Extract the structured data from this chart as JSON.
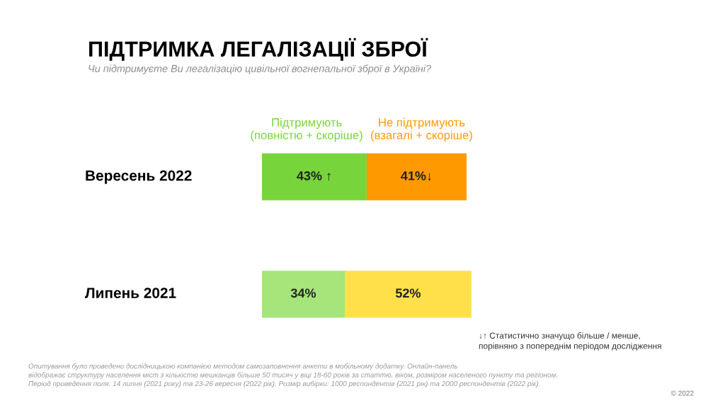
{
  "chart_data": {
    "type": "bar",
    "orientation": "horizontal",
    "stacked": true,
    "title": "ПІДТРИМКА ЛЕГАЛІЗАЦІЇ ЗБРОЇ",
    "subtitle": "Чи підтримуєте Ви легалізацію цивільної вогнепальної зброї в Україні?",
    "categories": [
      "Вересень 2022",
      "Липень 2021"
    ],
    "series": [
      {
        "name": "Підтримують\n(повністю + скоріше)",
        "color": "#77d43a",
        "colors": [
          "#77d43a",
          "#a5e57a"
        ],
        "values": [
          43,
          34
        ],
        "value_labels": [
          "43% ↑",
          "34%"
        ]
      },
      {
        "name": "Не підтримують\n(взагалі + скоріше)",
        "color": "#ff9900",
        "colors": [
          "#ff9900",
          "#ffe04a"
        ],
        "values": [
          41,
          52
        ],
        "value_labels": [
          "41%↓",
          "52%"
        ]
      }
    ],
    "legend": false,
    "annotations": [
      "↓↑ Статистично значущо більше / менше,\nпорівняно з попереднім періодом дослідження",
      "Опитування було проведено дослідницькою компанією методом самозаповнення анкети в мобільному додатку. Онлайн-панель\nвідображає структуру населення міст з кількістю мешканців більше 50 тисяч у віці 18-60 років за статтю, віком, розміром населеного пункту та регіоном.\nПеріод проведення поля: 14 липня (2021 року) та 23-26 вересня (2022 рік). Розмір вибірки: 1000 респондентів (2021 рік) та 2000 респондентів (2022 рік).",
      "© 2022"
    ]
  }
}
